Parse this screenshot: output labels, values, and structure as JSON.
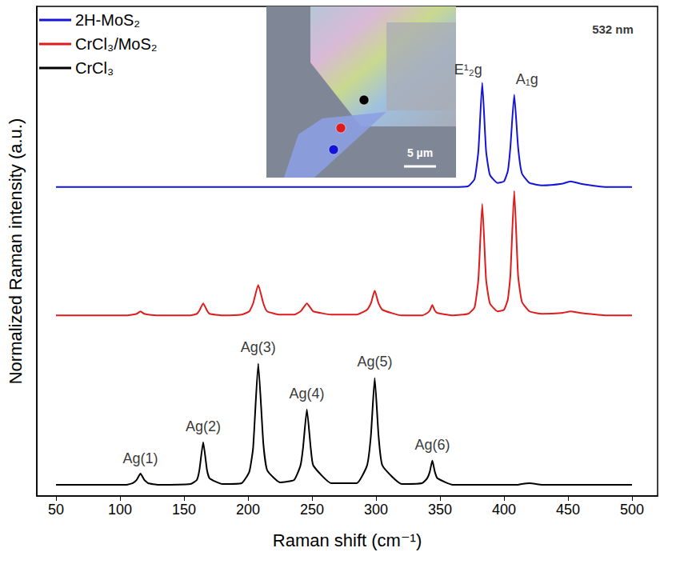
{
  "chart_data": {
    "type": "line",
    "x_label": "Raman shift (cm⁻¹)",
    "y_label": "Normalized Raman intensity (a.u.)",
    "xlim": [
      35,
      520
    ],
    "xticks": [
      50,
      100,
      150,
      200,
      250,
      300,
      350,
      400,
      450,
      500
    ],
    "ylim": [
      0,
      6.1
    ],
    "tick_labels": "x",
    "grid": false,
    "legend": "upper left",
    "x": [
      50,
      80,
      105,
      110,
      113,
      116,
      119,
      122,
      130,
      155,
      160,
      162,
      165,
      168,
      170,
      180,
      195,
      201,
      204,
      208,
      212,
      215,
      225,
      236,
      241,
      243,
      246,
      249,
      251,
      265,
      285,
      293,
      296,
      299,
      302,
      305,
      320,
      336,
      340,
      342,
      344,
      346,
      348,
      360,
      372,
      377,
      380,
      383,
      386,
      389,
      395,
      400,
      403,
      405,
      408,
      411,
      414,
      420,
      430,
      445,
      452,
      460,
      480,
      500
    ],
    "series": [
      {
        "name": "2H-MoS₂",
        "color": "#1414d8",
        "values": [
          3.85,
          3.85,
          3.85,
          3.85,
          3.85,
          3.85,
          3.85,
          3.85,
          3.85,
          3.85,
          3.85,
          3.85,
          3.85,
          3.85,
          3.85,
          3.85,
          3.85,
          3.85,
          3.85,
          3.85,
          3.85,
          3.85,
          3.85,
          3.85,
          3.85,
          3.85,
          3.85,
          3.85,
          3.85,
          3.85,
          3.85,
          3.85,
          3.85,
          3.85,
          3.85,
          3.85,
          3.85,
          3.85,
          3.85,
          3.85,
          3.85,
          3.85,
          3.85,
          3.85,
          3.86,
          3.95,
          4.3,
          5.15,
          4.3,
          4.0,
          3.9,
          3.92,
          4.05,
          4.35,
          5.0,
          4.35,
          4.02,
          3.9,
          3.87,
          3.89,
          3.92,
          3.89,
          3.85,
          3.85
        ]
      },
      {
        "name": "CrCl₃/MoS₂",
        "color": "#e01b1b",
        "values": [
          2.25,
          2.25,
          2.25,
          2.26,
          2.27,
          2.3,
          2.27,
          2.26,
          2.25,
          2.25,
          2.27,
          2.31,
          2.4,
          2.31,
          2.27,
          2.25,
          2.26,
          2.3,
          2.4,
          2.63,
          2.4,
          2.3,
          2.26,
          2.26,
          2.3,
          2.34,
          2.4,
          2.34,
          2.3,
          2.26,
          2.26,
          2.32,
          2.4,
          2.56,
          2.4,
          2.32,
          2.25,
          2.25,
          2.28,
          2.31,
          2.38,
          2.31,
          2.28,
          2.25,
          2.27,
          2.35,
          2.7,
          3.64,
          2.7,
          2.4,
          2.3,
          2.32,
          2.45,
          2.75,
          3.8,
          2.75,
          2.42,
          2.3,
          2.27,
          2.28,
          2.3,
          2.28,
          2.25,
          2.25
        ]
      },
      {
        "name": "CrCl₃",
        "color": "#000000",
        "values": [
          0.14,
          0.14,
          0.14,
          0.16,
          0.2,
          0.28,
          0.2,
          0.16,
          0.14,
          0.15,
          0.2,
          0.32,
          0.67,
          0.32,
          0.22,
          0.15,
          0.16,
          0.3,
          0.6,
          1.65,
          0.65,
          0.32,
          0.17,
          0.2,
          0.38,
          0.6,
          1.08,
          0.6,
          0.38,
          0.16,
          0.16,
          0.38,
          0.75,
          1.47,
          0.75,
          0.38,
          0.15,
          0.16,
          0.22,
          0.3,
          0.44,
          0.3,
          0.22,
          0.14,
          0.14,
          0.14,
          0.14,
          0.14,
          0.14,
          0.14,
          0.14,
          0.14,
          0.14,
          0.14,
          0.14,
          0.14,
          0.15,
          0.16,
          0.14,
          0.14,
          0.14,
          0.14,
          0.14,
          0.14
        ]
      }
    ],
    "peak_labels": [
      {
        "text": "Ag(1)",
        "x": 116,
        "y": 0.36
      },
      {
        "text": "Ag(2)",
        "x": 165,
        "y": 0.76
      },
      {
        "text": "Ag(3)",
        "x": 208,
        "y": 1.74
      },
      {
        "text": "Ag(4)",
        "x": 246,
        "y": 1.17
      },
      {
        "text": "Ag(5)",
        "x": 299,
        "y": 1.56
      },
      {
        "text": "Ag(6)",
        "x": 344,
        "y": 0.53
      },
      {
        "text": "E¹₂g",
        "x": 372,
        "y": 5.2
      },
      {
        "text": "A₁g",
        "x": 418,
        "y": 5.08
      }
    ],
    "annotations": [
      {
        "text": "532 nm",
        "x": 485,
        "y": 5.82
      }
    ],
    "inset": {
      "scale_bar": "5 µm"
    }
  }
}
